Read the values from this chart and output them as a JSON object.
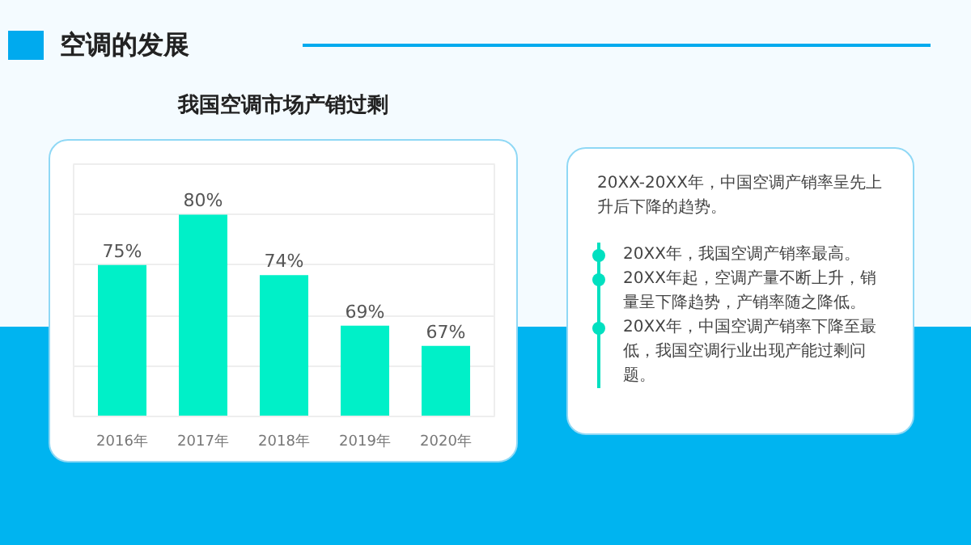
{
  "chart_data": [
    {
      "type": "bar",
      "title": "空调的发展",
      "subtitle": "我国空调市场产销过剩",
      "categories": [
        "2016年",
        "2017年",
        "2018年",
        "2019年",
        "2020年"
      ],
      "values": [
        75,
        80,
        74,
        69,
        67
      ],
      "color": "#00f0c8",
      "data_labels": true,
      "value_labels": [
        "75%",
        "80%",
        "74%",
        "69%",
        "67%"
      ],
      "ylim": [
        60,
        85
      ],
      "yticks": [
        {
          "value": 60,
          "label": null
        },
        {
          "value": 65,
          "label": null
        },
        {
          "value": 70,
          "label": null
        },
        {
          "value": 75,
          "label": null
        },
        {
          "value": 80,
          "label": null
        },
        {
          "value": 85,
          "label": null
        }
      ],
      "tick_labels": "x",
      "grid": "y"
    },
    {
      "type": "other",
      "annotations": [
        "20XX-20XX年，中国空调产销率呈先上升后下降的趋势。",
        "20XX年，我国空调产销率最高。",
        "20XX年起，空调产量不断上升，销量呈下降趋势，产销率随之降低。",
        "20XX年，中国空调产销率下降至最低，我国空调行业出现产能过剩问题。"
      ]
    }
  ]
}
